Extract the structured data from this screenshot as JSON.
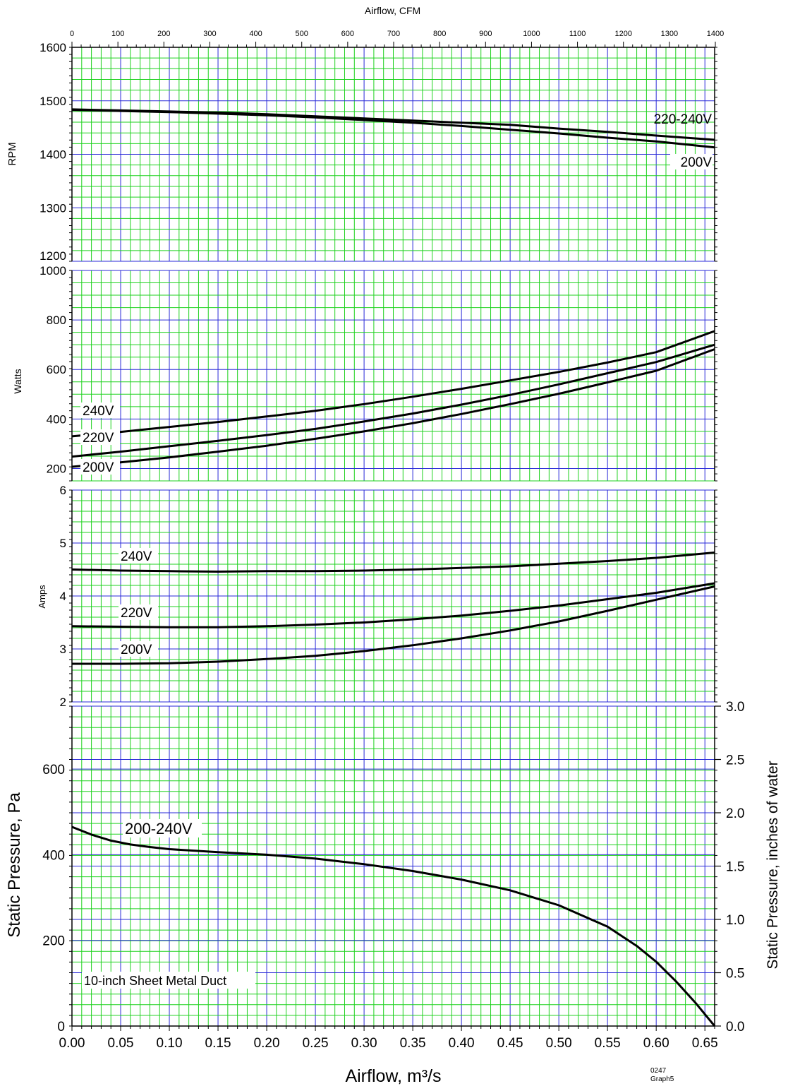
{
  "chart_data": [
    {
      "type": "line",
      "ylabel": "RPM",
      "top_axis_label": "Airflow, CFM",
      "top_axis_ticks": [
        "0",
        "100",
        "200",
        "300",
        "400",
        "500",
        "600",
        "700",
        "800",
        "900",
        "1000",
        "1100",
        "1200",
        "1300",
        "1400"
      ],
      "xlim": [
        0,
        0.66
      ],
      "ylim": [
        1200,
        1600
      ],
      "yticks": [
        "1200",
        "1300",
        "1400",
        "1500",
        "1600"
      ],
      "grid": true,
      "series": [
        {
          "name": "220-240V",
          "x": [
            0,
            0.05,
            0.1,
            0.15,
            0.2,
            0.25,
            0.3,
            0.35,
            0.4,
            0.45,
            0.5,
            0.55,
            0.6,
            0.66
          ],
          "y": [
            1484,
            1482,
            1480,
            1478,
            1475,
            1471,
            1467,
            1463,
            1459,
            1455,
            1448,
            1442,
            1435,
            1427
          ]
        },
        {
          "name": "200V",
          "x": [
            0,
            0.05,
            0.1,
            0.15,
            0.2,
            0.25,
            0.3,
            0.35,
            0.4,
            0.45,
            0.5,
            0.55,
            0.6,
            0.66
          ],
          "y": [
            1483,
            1481,
            1479,
            1476,
            1473,
            1469,
            1464,
            1459,
            1453,
            1446,
            1439,
            1431,
            1424,
            1413
          ]
        }
      ]
    },
    {
      "type": "line",
      "ylabel": "Watts",
      "xlim": [
        0,
        0.66
      ],
      "ylim": [
        150,
        1000
      ],
      "yticks": [
        "200",
        "400",
        "600",
        "800",
        "1000"
      ],
      "grid": true,
      "series": [
        {
          "name": "240V",
          "x": [
            0,
            0.05,
            0.1,
            0.15,
            0.2,
            0.25,
            0.3,
            0.35,
            0.4,
            0.45,
            0.5,
            0.55,
            0.6,
            0.66
          ],
          "y": [
            330,
            348,
            368,
            388,
            410,
            433,
            460,
            490,
            522,
            556,
            590,
            628,
            670,
            755
          ]
        },
        {
          "name": "220V",
          "x": [
            0,
            0.05,
            0.1,
            0.15,
            0.2,
            0.25,
            0.3,
            0.35,
            0.4,
            0.45,
            0.5,
            0.55,
            0.6,
            0.66
          ],
          "y": [
            248,
            268,
            290,
            312,
            335,
            360,
            390,
            422,
            458,
            497,
            540,
            585,
            630,
            700
          ]
        },
        {
          "name": "200V",
          "x": [
            0,
            0.05,
            0.1,
            0.15,
            0.2,
            0.25,
            0.3,
            0.35,
            0.4,
            0.45,
            0.5,
            0.55,
            0.6,
            0.66
          ],
          "y": [
            207,
            225,
            245,
            268,
            292,
            320,
            350,
            383,
            420,
            460,
            502,
            548,
            595,
            682
          ]
        }
      ]
    },
    {
      "type": "line",
      "ylabel": "Amps",
      "xlim": [
        0,
        0.66
      ],
      "ylim": [
        2,
        6
      ],
      "yticks": [
        "2",
        "3",
        "4",
        "5",
        "6"
      ],
      "grid": true,
      "series": [
        {
          "name": "240V",
          "x": [
            0,
            0.05,
            0.1,
            0.15,
            0.2,
            0.25,
            0.3,
            0.35,
            0.4,
            0.45,
            0.5,
            0.55,
            0.6,
            0.66
          ],
          "y": [
            4.5,
            4.48,
            4.47,
            4.46,
            4.47,
            4.47,
            4.48,
            4.5,
            4.53,
            4.56,
            4.61,
            4.66,
            4.72,
            4.82
          ]
        },
        {
          "name": "220V",
          "x": [
            0,
            0.05,
            0.1,
            0.15,
            0.2,
            0.25,
            0.3,
            0.35,
            0.4,
            0.45,
            0.5,
            0.55,
            0.6,
            0.66
          ],
          "y": [
            3.43,
            3.42,
            3.41,
            3.41,
            3.43,
            3.46,
            3.5,
            3.56,
            3.63,
            3.72,
            3.82,
            3.94,
            4.06,
            4.24
          ]
        },
        {
          "name": "200V",
          "x": [
            0,
            0.05,
            0.1,
            0.15,
            0.2,
            0.25,
            0.3,
            0.35,
            0.4,
            0.45,
            0.5,
            0.55,
            0.6,
            0.66
          ],
          "y": [
            2.72,
            2.72,
            2.73,
            2.76,
            2.81,
            2.87,
            2.96,
            3.07,
            3.2,
            3.35,
            3.52,
            3.72,
            3.93,
            4.18
          ]
        }
      ]
    },
    {
      "type": "line",
      "xlabel": "Airflow, m³/s",
      "ylabel": "Static Pressure, Pa",
      "y2label": "Static Pressure, inches of water",
      "xlim": [
        0,
        0.66
      ],
      "ylim": [
        0,
        747
      ],
      "y2lim": [
        0,
        3.0
      ],
      "xticks": [
        "0.00",
        "0.05",
        "0.10",
        "0.15",
        "0.20",
        "0.25",
        "0.30",
        "0.35",
        "0.40",
        "0.45",
        "0.50",
        "0.55",
        "0.60",
        "0.65"
      ],
      "yticks": [
        "0",
        "200",
        "400",
        "600"
      ],
      "y2ticks": [
        "0.0",
        "0.5",
        "1.0",
        "1.5",
        "2.0",
        "2.5",
        "3.0"
      ],
      "grid": true,
      "annotation": "10-inch Sheet Metal Duct",
      "series": [
        {
          "name": "200-240V",
          "x": [
            0,
            0.02,
            0.04,
            0.06,
            0.08,
            0.1,
            0.15,
            0.2,
            0.25,
            0.3,
            0.35,
            0.4,
            0.45,
            0.5,
            0.55,
            0.58,
            0.6,
            0.62,
            0.64,
            0.66
          ],
          "y": [
            465,
            447,
            433,
            424,
            418,
            413,
            406,
            400,
            391,
            378,
            362,
            342,
            317,
            282,
            232,
            187,
            150,
            105,
            55,
            0
          ]
        }
      ]
    }
  ],
  "figure_id": "0247",
  "figure_sub": "Graph5"
}
